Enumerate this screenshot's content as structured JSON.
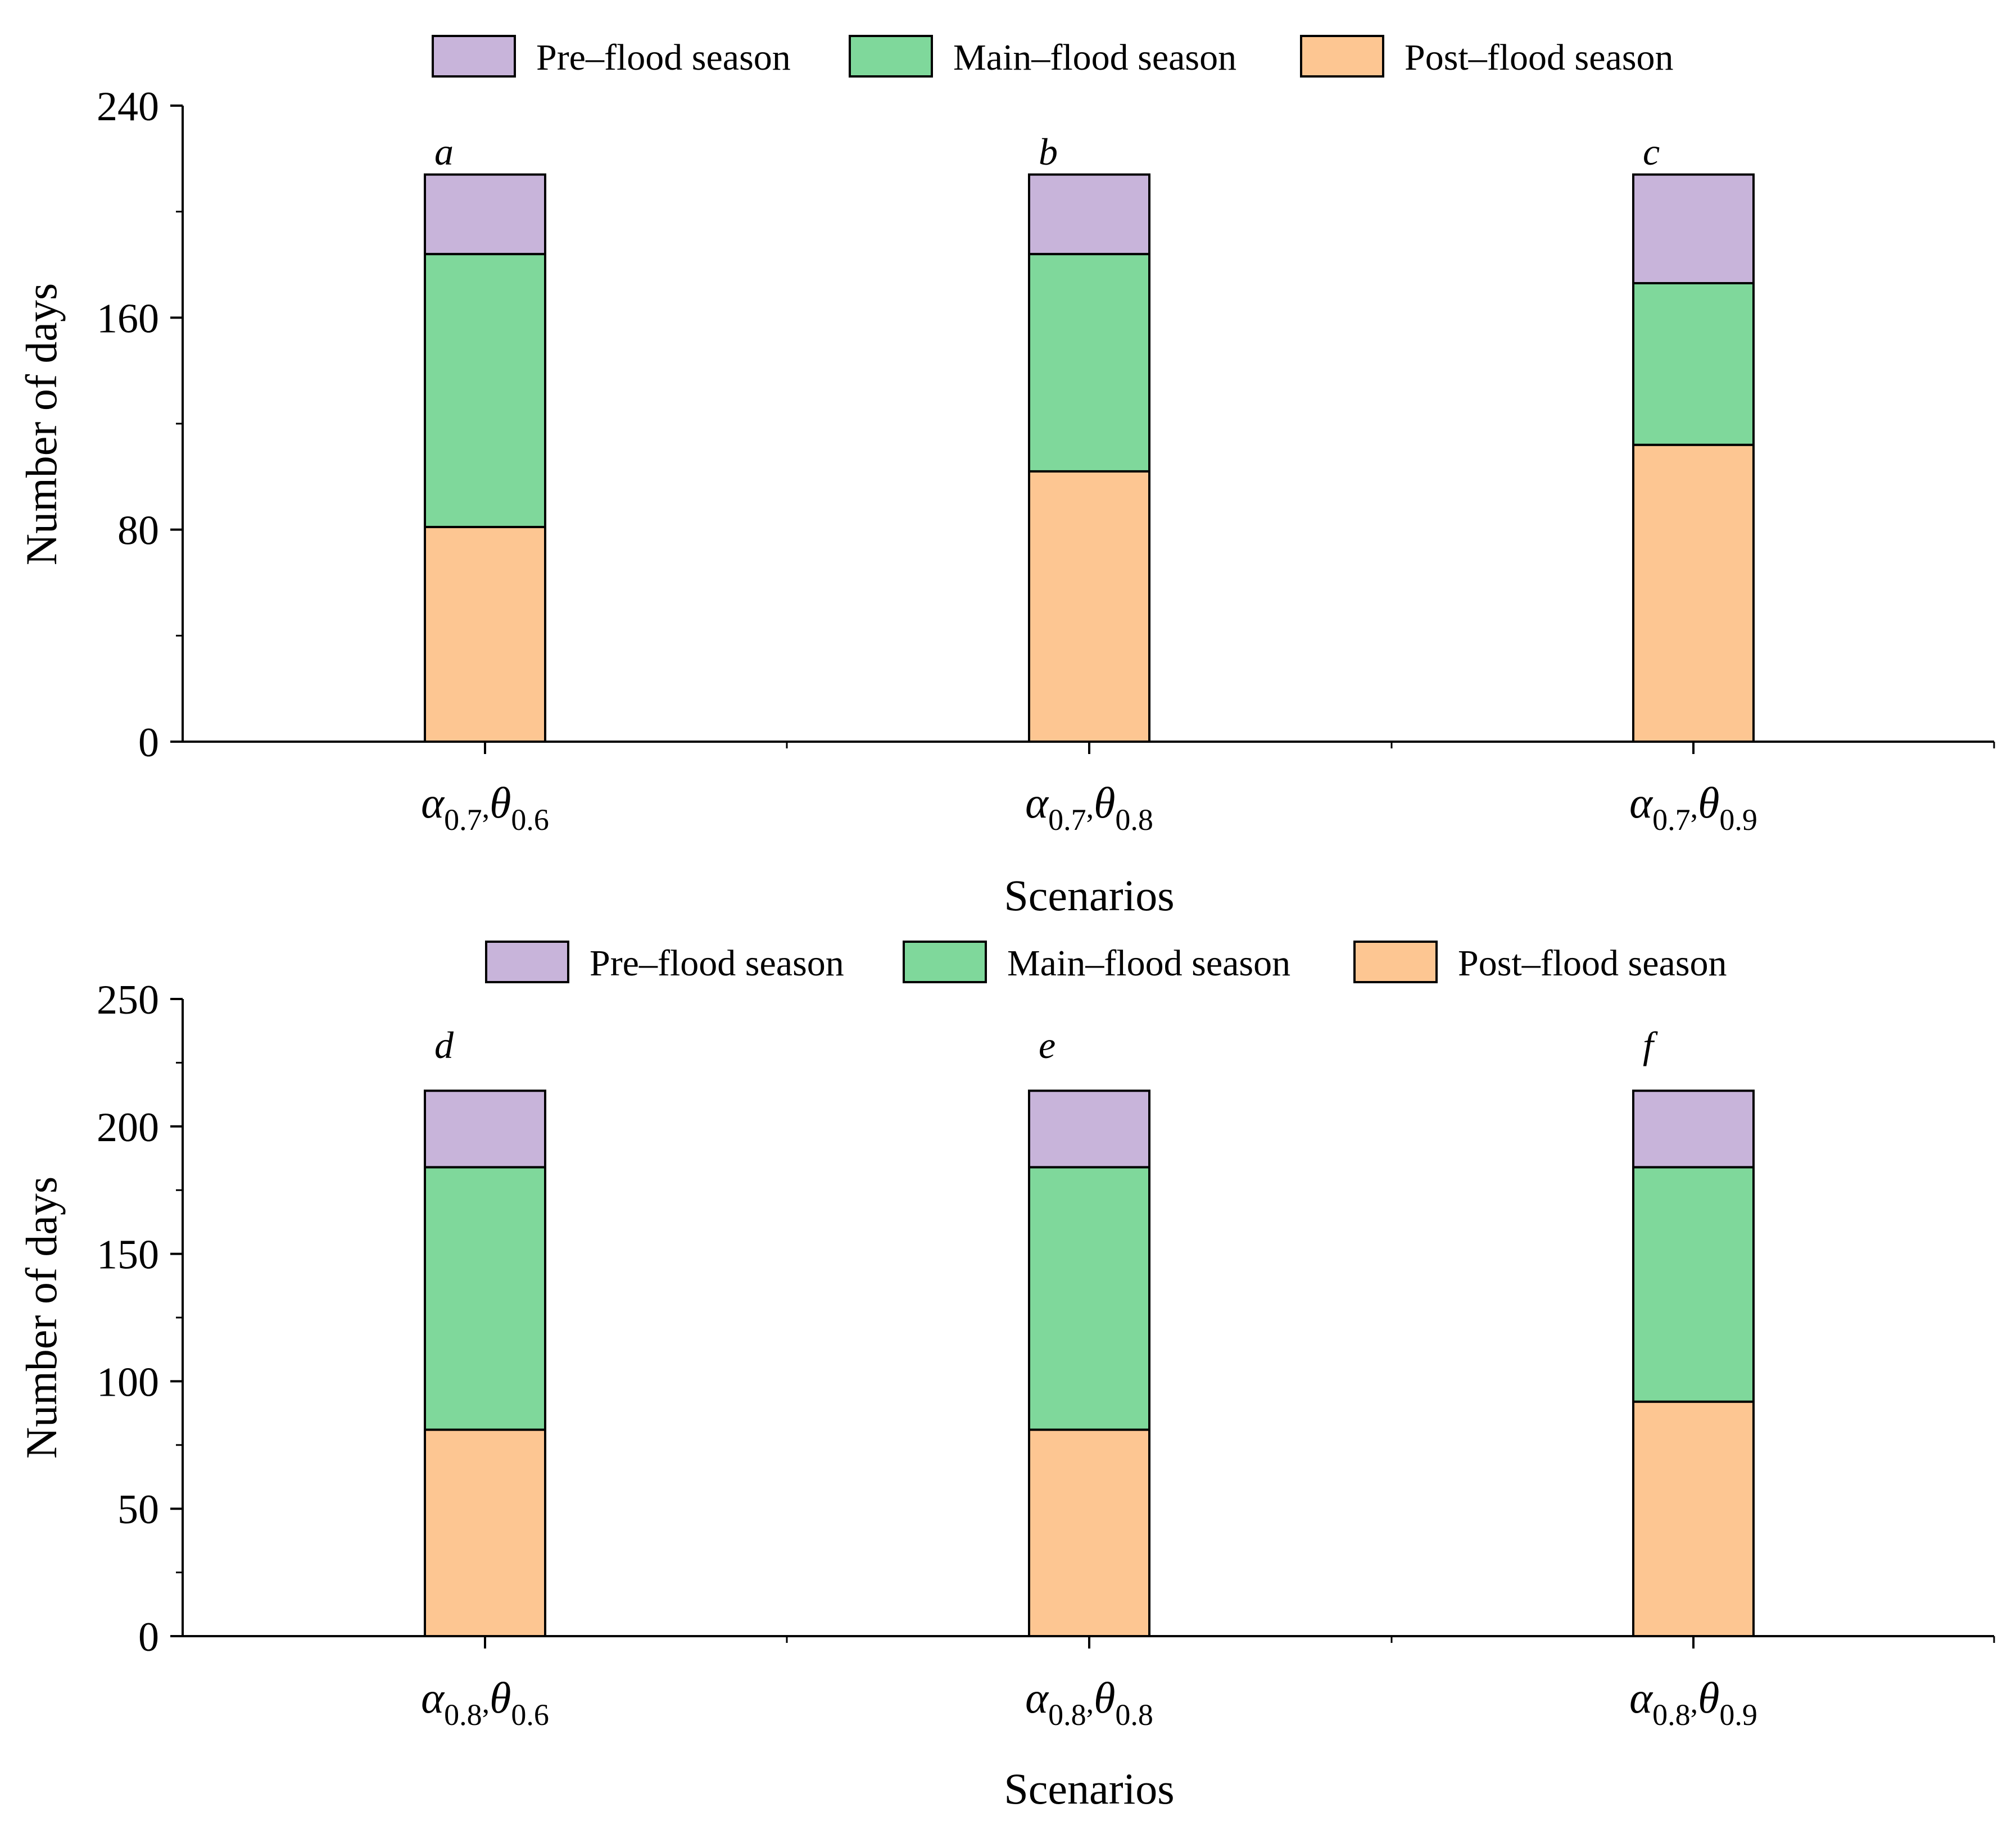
{
  "chart_data": [
    {
      "type": "bar",
      "stacked": true,
      "xlabel": "Scenarios",
      "ylabel": "Number of days",
      "ylim": [
        0,
        240
      ],
      "yticks": [
        "0",
        "80",
        "160",
        "240"
      ],
      "legend": [
        {
          "name": "Pre–flood season",
          "color": "#c8b4da"
        },
        {
          "name": "Main–flood season",
          "color": "#7fd89b"
        },
        {
          "name": "Post–flood season",
          "color": "#fdc692"
        }
      ],
      "categories": [
        {
          "alpha_sym": "α",
          "alpha_sub": "0.7",
          "sep": ",",
          "theta_sym": "θ",
          "theta_sub": "0.6",
          "letter": "a"
        },
        {
          "alpha_sym": "α",
          "alpha_sub": "0.7",
          "sep": ",",
          "theta_sym": "θ",
          "theta_sub": "0.8",
          "letter": "b"
        },
        {
          "alpha_sym": "α",
          "alpha_sub": "0.7",
          "sep": ",",
          "theta_sym": "θ",
          "theta_sub": "0.9",
          "letter": "c"
        }
      ],
      "series": [
        {
          "name": "Post–flood season",
          "values": [
            81,
            102,
            112
          ]
        },
        {
          "name": "Main–flood season",
          "values": [
            103,
            82,
            61
          ]
        },
        {
          "name": "Pre–flood season",
          "values": [
            30,
            30,
            41
          ]
        }
      ]
    },
    {
      "type": "bar",
      "stacked": true,
      "xlabel": "Scenarios",
      "ylabel": "Number of days",
      "ylim": [
        0,
        250
      ],
      "yticks": [
        "0",
        "50",
        "100",
        "150",
        "200",
        "250"
      ],
      "legend": [
        {
          "name": "Pre–flood season",
          "color": "#c8b4da"
        },
        {
          "name": "Main–flood season",
          "color": "#7fd89b"
        },
        {
          "name": "Post–flood season",
          "color": "#fdc692"
        }
      ],
      "categories": [
        {
          "alpha_sym": "α",
          "alpha_sub": "0.8",
          "sep": ",",
          "theta_sym": "θ",
          "theta_sub": "0.6",
          "letter": "d"
        },
        {
          "alpha_sym": "α",
          "alpha_sub": "0.8",
          "sep": ",",
          "theta_sym": "θ",
          "theta_sub": "0.8",
          "letter": "e"
        },
        {
          "alpha_sym": "α",
          "alpha_sub": "0.8",
          "sep": ",",
          "theta_sym": "θ",
          "theta_sub": "0.9",
          "letter": "f"
        }
      ],
      "series": [
        {
          "name": "Post–flood season",
          "values": [
            81,
            81,
            92
          ]
        },
        {
          "name": "Main–flood season",
          "values": [
            103,
            103,
            92
          ]
        },
        {
          "name": "Pre–flood season",
          "values": [
            30,
            30,
            30
          ]
        }
      ]
    }
  ]
}
